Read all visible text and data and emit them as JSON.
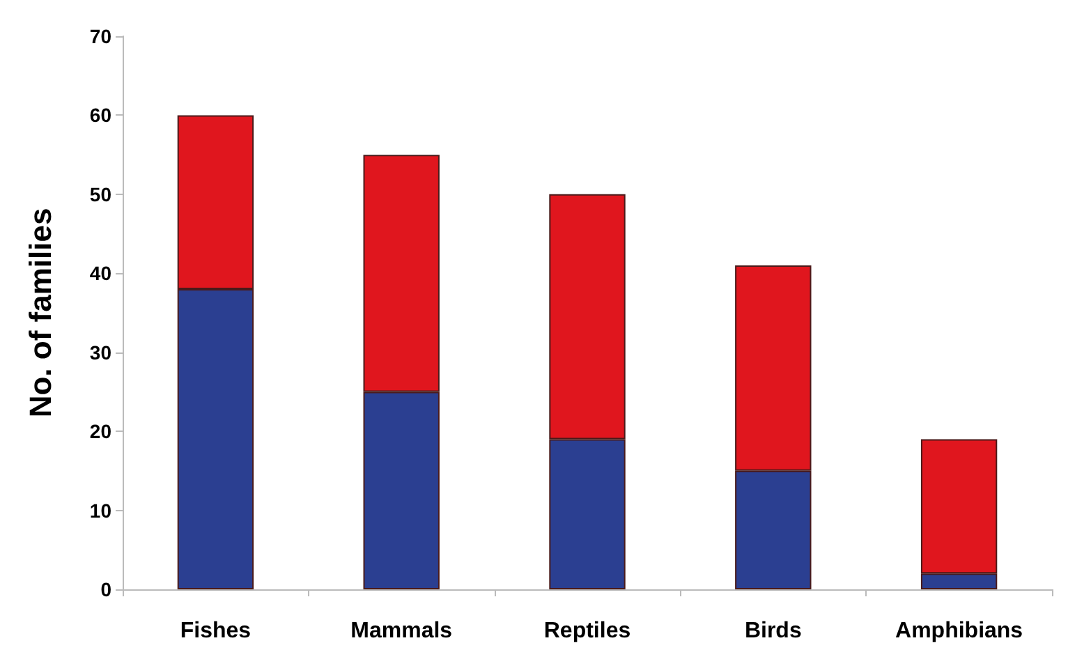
{
  "chart_data": {
    "type": "bar",
    "stacked": true,
    "ylabel": "No. of families",
    "categories": [
      "Fishes",
      "Mammals",
      "Reptiles",
      "Birds",
      "Amphibians"
    ],
    "series": [
      {
        "color": "#2b3f91",
        "values": [
          38,
          25,
          19,
          15,
          2
        ]
      },
      {
        "color": "#e0161e",
        "values": [
          22,
          30,
          31,
          26,
          17
        ]
      }
    ],
    "ylim": [
      0,
      70
    ],
    "yticks": [
      0,
      10,
      20,
      30,
      40,
      50,
      60,
      70
    ],
    "grid": false
  }
}
